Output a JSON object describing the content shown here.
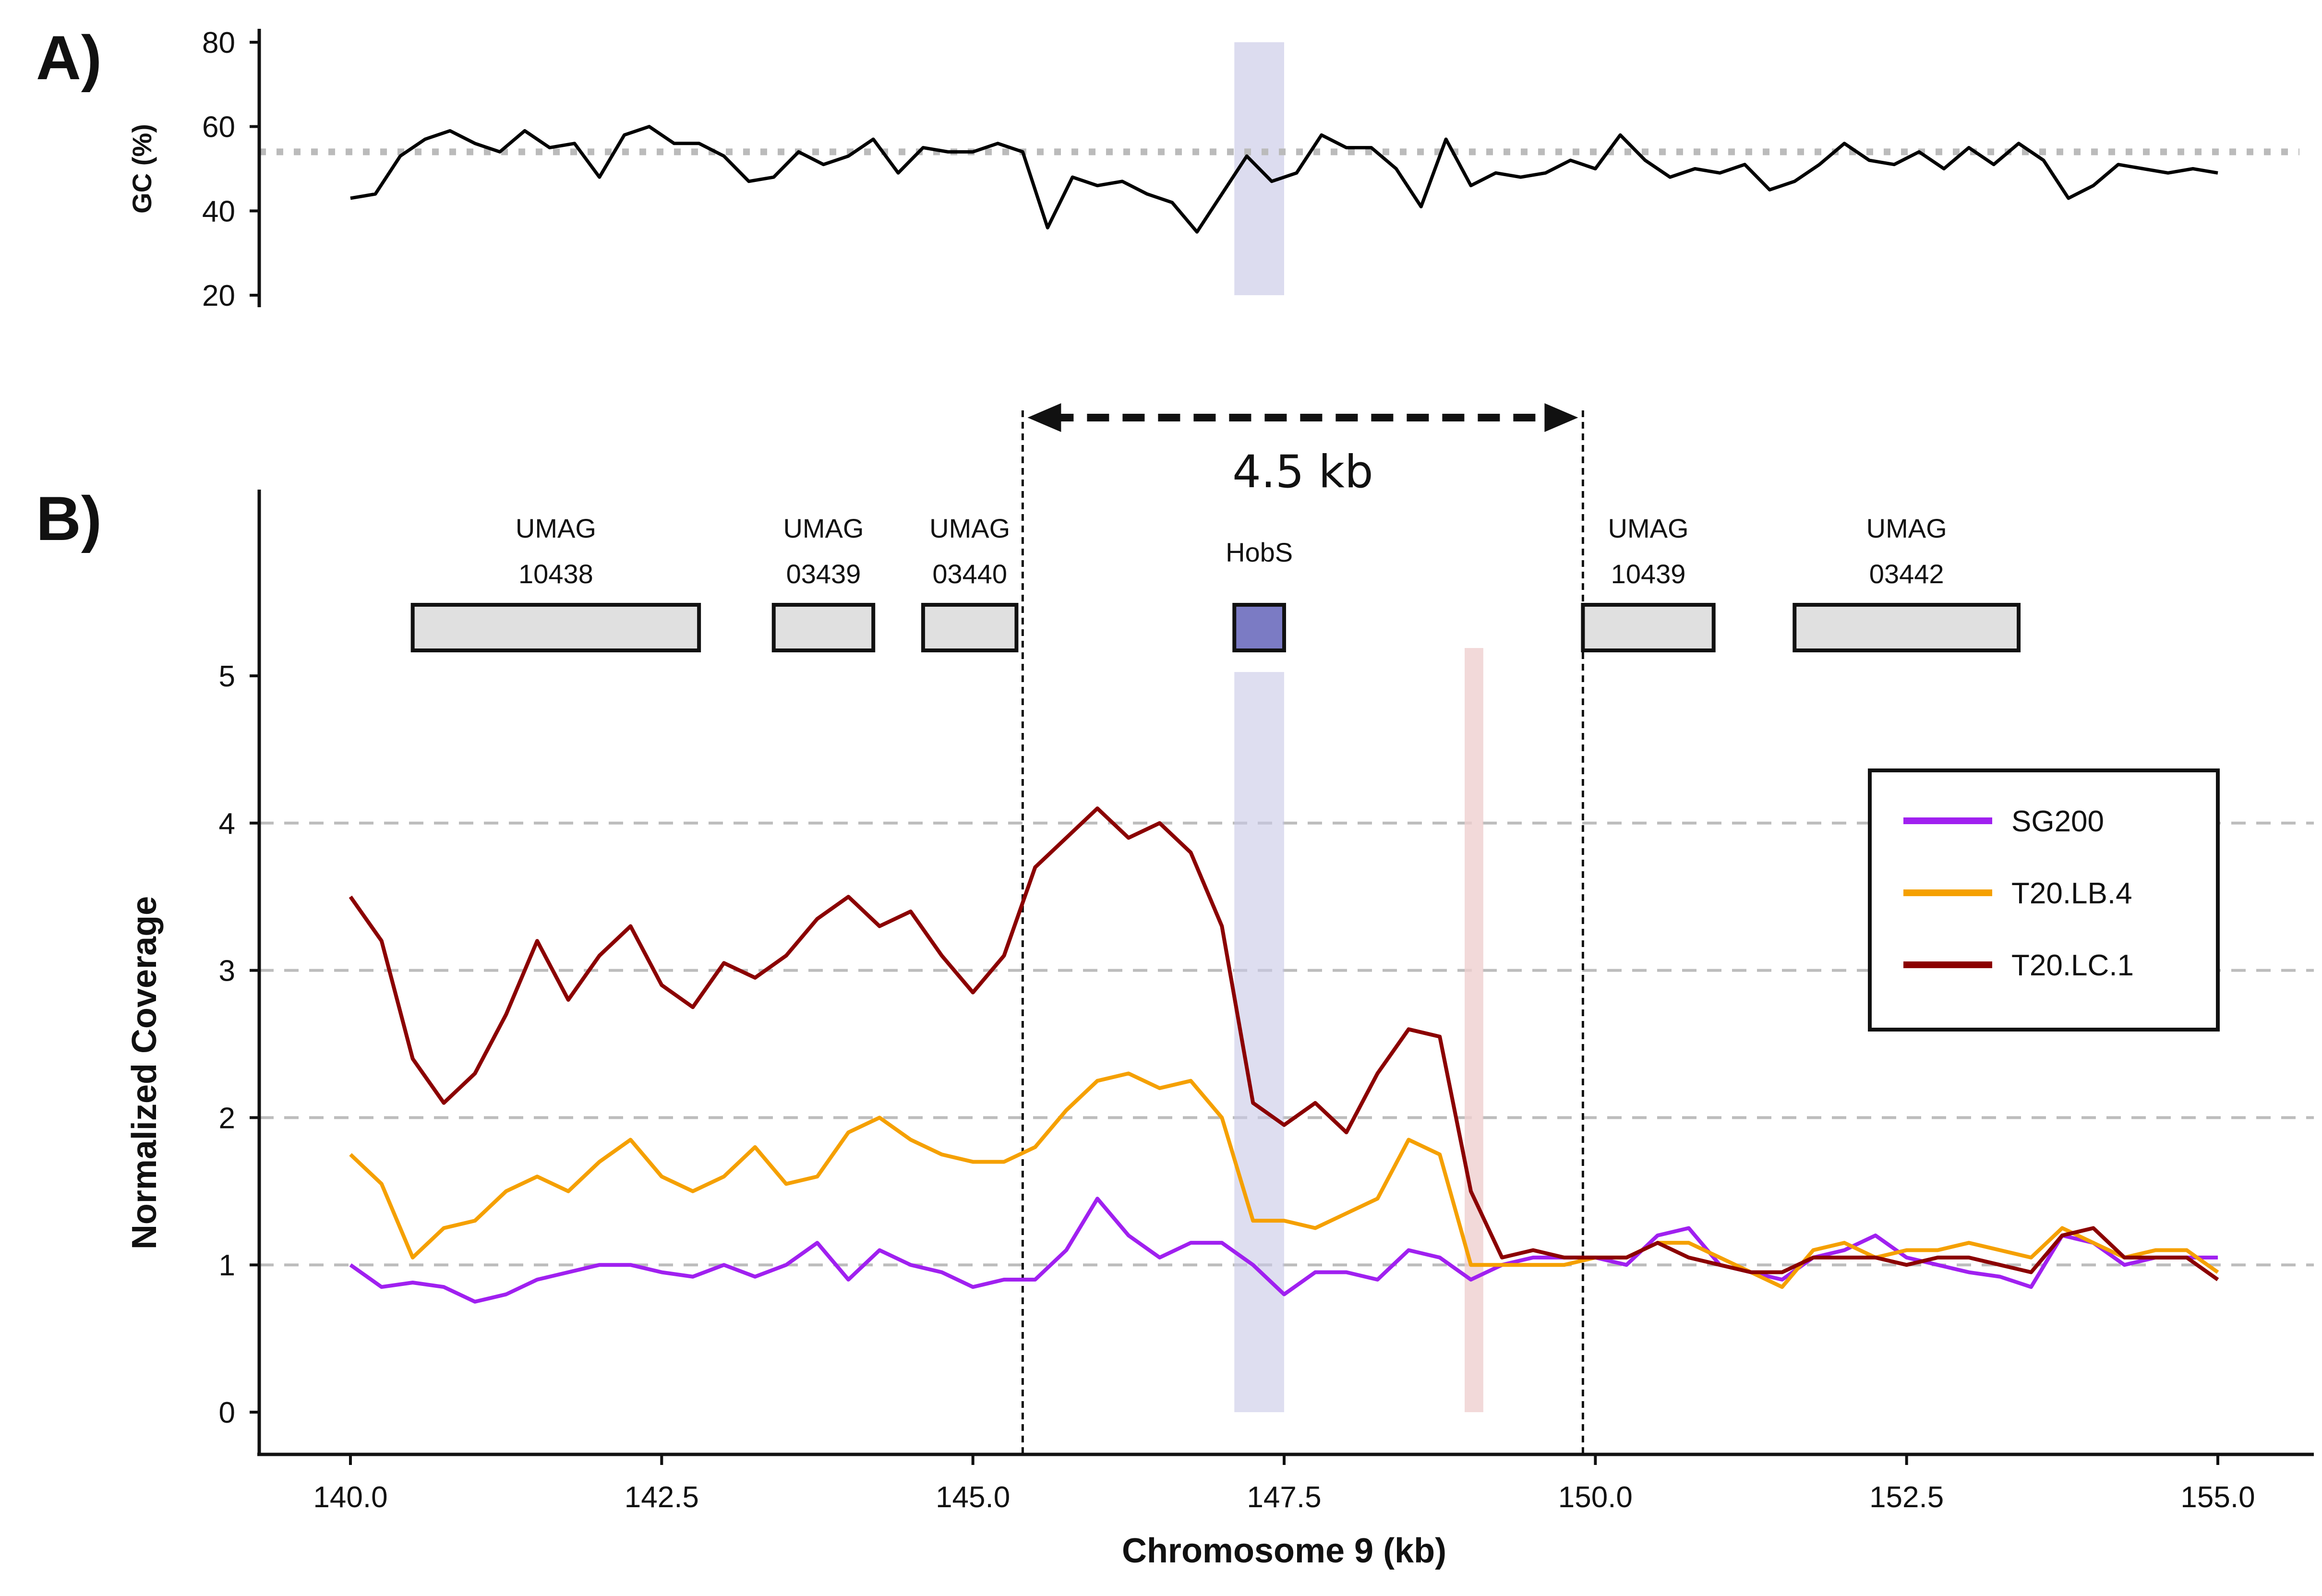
{
  "chart_data": [
    {
      "panel": "A)",
      "type": "line",
      "ylabel": "GC (%)",
      "xlim": [
        140.0,
        155.0
      ],
      "ylim": [
        20,
        80
      ],
      "yticks": [
        20,
        40,
        60,
        80
      ],
      "grid": false,
      "reference_line": {
        "y": 54,
        "style": "dotted",
        "color": "#bbbbbb"
      },
      "highlight": {
        "x_start": 147.1,
        "x_end": 147.5,
        "color": "#9c9cd0"
      },
      "series": [
        {
          "color": "#000000",
          "x": [
            140.0,
            140.2,
            140.4,
            140.6,
            140.8,
            141.0,
            141.2,
            141.4,
            141.6,
            141.8,
            142.0,
            142.2,
            142.4,
            142.6,
            142.8,
            143.0,
            143.2,
            143.4,
            143.6,
            143.8,
            144.0,
            144.2,
            144.4,
            144.6,
            144.8,
            145.0,
            145.2,
            145.4,
            145.6,
            145.8,
            146.0,
            146.2,
            146.4,
            146.6,
            146.8,
            147.0,
            147.2,
            147.4,
            147.6,
            147.8,
            148.0,
            148.2,
            148.4,
            148.6,
            148.8,
            149.0,
            149.2,
            149.4,
            149.6,
            149.8,
            150.0,
            150.2,
            150.4,
            150.6,
            150.8,
            151.0,
            151.2,
            151.4,
            151.6,
            151.8,
            152.0,
            152.2,
            152.4,
            152.6,
            152.8,
            153.0,
            153.2,
            153.4,
            153.6,
            153.8,
            154.0,
            154.2,
            154.4,
            154.6,
            154.8,
            155.0
          ],
          "values": [
            43,
            44,
            53,
            57,
            59,
            56,
            54,
            59,
            55,
            56,
            48,
            58,
            60,
            56,
            56,
            53,
            47,
            48,
            54,
            51,
            53,
            57,
            49,
            55,
            54,
            54,
            56,
            54,
            36,
            48,
            46,
            47,
            44,
            42,
            35,
            44,
            53,
            47,
            49,
            58,
            55,
            55,
            50,
            41,
            57,
            46,
            49,
            48,
            49,
            52,
            50,
            58,
            52,
            48,
            50,
            49,
            51,
            45,
            47,
            51,
            56,
            52,
            51,
            54,
            50,
            55,
            51,
            56,
            52,
            43,
            46,
            51,
            50,
            49,
            50,
            49
          ]
        }
      ]
    },
    {
      "panel": "B)",
      "type": "line",
      "xlabel": "Chromosome 9 (kb)",
      "ylabel": "Normalized Coverage",
      "xlim": [
        140.0,
        155.0
      ],
      "ylim": [
        0,
        5
      ],
      "xticks": [
        "140.0",
        "142.5",
        "145.0",
        "147.5",
        "150.0",
        "152.5",
        "155.0"
      ],
      "yticks": [
        "0",
        "1",
        "2",
        "3",
        "4",
        "5"
      ],
      "grid": "horizontal dashed at 1, 2, 3, 4",
      "legend": {
        "position": "right",
        "entries": [
          "SG200",
          "T20.LB.4",
          "T20.LC.1"
        ]
      },
      "genes": [
        {
          "line1": "UMAG",
          "line2": "10438",
          "start": 140.5,
          "end": 142.8,
          "color": "#e0e0e0"
        },
        {
          "line1": "UMAG",
          "line2": "03439",
          "start": 143.4,
          "end": 144.2,
          "color": "#e0e0e0"
        },
        {
          "line1": "UMAG",
          "line2": "03440",
          "start": 144.6,
          "end": 145.35,
          "color": "#e0e0e0"
        },
        {
          "line1": "HobS",
          "line2": "",
          "start": 147.1,
          "end": 147.5,
          "color": "#7b7bc4"
        },
        {
          "line1": "UMAG",
          "line2": "10439",
          "start": 149.9,
          "end": 150.95,
          "color": "#e0e0e0"
        },
        {
          "line1": "UMAG",
          "line2": "03442",
          "start": 151.6,
          "end": 153.4,
          "color": "#e0e0e0"
        }
      ],
      "highlights": [
        {
          "x_start": 147.1,
          "x_end": 147.5,
          "color": "#c8c8e6"
        },
        {
          "x_start": 148.95,
          "x_end": 149.1,
          "color": "#efd0d0"
        }
      ],
      "bracket": {
        "label": "4.5 kb",
        "x_start": 145.4,
        "x_end": 149.9
      },
      "series": [
        {
          "name": "SG200",
          "color": "#a020f0",
          "x": [
            140.0,
            140.25,
            140.5,
            140.75,
            141.0,
            141.25,
            141.5,
            141.75,
            142.0,
            142.25,
            142.5,
            142.75,
            143.0,
            143.25,
            143.5,
            143.75,
            144.0,
            144.25,
            144.5,
            144.75,
            145.0,
            145.25,
            145.5,
            145.75,
            146.0,
            146.25,
            146.5,
            146.75,
            147.0,
            147.25,
            147.5,
            147.75,
            148.0,
            148.25,
            148.5,
            148.75,
            149.0,
            149.25,
            149.5,
            149.75,
            150.0,
            150.25,
            150.5,
            150.75,
            151.0,
            151.25,
            151.5,
            151.75,
            152.0,
            152.25,
            152.5,
            152.75,
            153.0,
            153.25,
            153.5,
            153.75,
            154.0,
            154.25,
            154.5,
            154.75,
            155.0
          ],
          "values": [
            1.0,
            0.85,
            0.88,
            0.85,
            0.75,
            0.8,
            0.9,
            0.95,
            1.0,
            1.0,
            0.95,
            0.92,
            1.0,
            0.92,
            1.0,
            1.15,
            0.9,
            1.1,
            1.0,
            0.95,
            0.85,
            0.9,
            0.9,
            1.1,
            1.45,
            1.2,
            1.05,
            1.15,
            1.15,
            1.0,
            0.8,
            0.95,
            0.95,
            0.9,
            1.1,
            1.05,
            0.9,
            1.0,
            1.05,
            1.05,
            1.05,
            1.0,
            1.2,
            1.25,
            1.0,
            0.95,
            0.9,
            1.05,
            1.1,
            1.2,
            1.05,
            1.0,
            0.95,
            0.92,
            0.85,
            1.2,
            1.15,
            1.0,
            1.05,
            1.05,
            1.05
          ]
        },
        {
          "name": "T20.LB.4",
          "color": "#f5a000",
          "x": [
            140.0,
            140.25,
            140.5,
            140.75,
            141.0,
            141.25,
            141.5,
            141.75,
            142.0,
            142.25,
            142.5,
            142.75,
            143.0,
            143.25,
            143.5,
            143.75,
            144.0,
            144.25,
            144.5,
            144.75,
            145.0,
            145.25,
            145.5,
            145.75,
            146.0,
            146.25,
            146.5,
            146.75,
            147.0,
            147.25,
            147.5,
            147.75,
            148.0,
            148.25,
            148.5,
            148.75,
            149.0,
            149.25,
            149.5,
            149.75,
            150.0,
            150.25,
            150.5,
            150.75,
            151.0,
            151.25,
            151.5,
            151.75,
            152.0,
            152.25,
            152.5,
            152.75,
            153.0,
            153.25,
            153.5,
            153.75,
            154.0,
            154.25,
            154.5,
            154.75,
            155.0
          ],
          "values": [
            1.75,
            1.55,
            1.05,
            1.25,
            1.3,
            1.5,
            1.6,
            1.5,
            1.7,
            1.85,
            1.6,
            1.5,
            1.6,
            1.8,
            1.55,
            1.6,
            1.9,
            2.0,
            1.85,
            1.75,
            1.7,
            1.7,
            1.8,
            2.05,
            2.25,
            2.3,
            2.2,
            2.25,
            2.0,
            1.3,
            1.3,
            1.25,
            1.35,
            1.45,
            1.85,
            1.75,
            1.0,
            1.0,
            1.0,
            1.0,
            1.05,
            1.05,
            1.15,
            1.15,
            1.05,
            0.95,
            0.85,
            1.1,
            1.15,
            1.05,
            1.1,
            1.1,
            1.15,
            1.1,
            1.05,
            1.25,
            1.15,
            1.05,
            1.1,
            1.1,
            0.95
          ]
        },
        {
          "name": "T20.LC.1",
          "color": "#8b0000",
          "x": [
            140.0,
            140.25,
            140.5,
            140.75,
            141.0,
            141.25,
            141.5,
            141.75,
            142.0,
            142.25,
            142.5,
            142.75,
            143.0,
            143.25,
            143.5,
            143.75,
            144.0,
            144.25,
            144.5,
            144.75,
            145.0,
            145.25,
            145.5,
            145.75,
            146.0,
            146.25,
            146.5,
            146.75,
            147.0,
            147.25,
            147.5,
            147.75,
            148.0,
            148.25,
            148.5,
            148.75,
            149.0,
            149.25,
            149.5,
            149.75,
            150.0,
            150.25,
            150.5,
            150.75,
            151.0,
            151.25,
            151.5,
            151.75,
            152.0,
            152.25,
            152.5,
            152.75,
            153.0,
            153.25,
            153.5,
            153.75,
            154.0,
            154.25,
            154.5,
            154.75,
            155.0
          ],
          "values": [
            3.5,
            3.2,
            2.4,
            2.1,
            2.3,
            2.7,
            3.2,
            2.8,
            3.1,
            3.3,
            2.9,
            2.75,
            3.05,
            2.95,
            3.1,
            3.35,
            3.5,
            3.3,
            3.4,
            3.1,
            2.85,
            3.1,
            3.7,
            3.9,
            4.1,
            3.9,
            4.0,
            3.8,
            3.3,
            2.1,
            1.95,
            2.1,
            1.9,
            2.3,
            2.6,
            2.55,
            1.5,
            1.05,
            1.1,
            1.05,
            1.05,
            1.05,
            1.15,
            1.05,
            1.0,
            0.95,
            0.95,
            1.05,
            1.05,
            1.05,
            1.0,
            1.05,
            1.05,
            1.0,
            0.95,
            1.2,
            1.25,
            1.05,
            1.05,
            1.05,
            0.9
          ]
        }
      ]
    }
  ]
}
